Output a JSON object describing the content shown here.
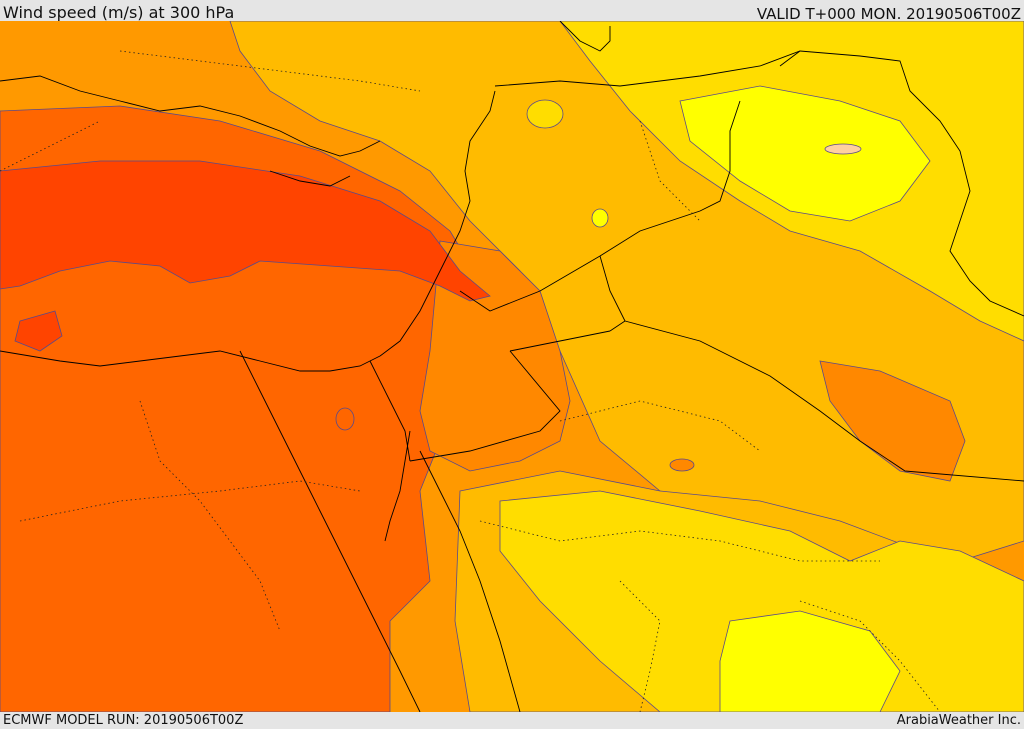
{
  "header": {
    "title": "Wind speed (m/s) at 300 hPa",
    "valid": "VALID T+000 MON. 20190506T00Z"
  },
  "footer": {
    "model_run": "ECMWF MODEL RUN: 20190506T00Z",
    "credit": "ArabiaWeather Inc."
  },
  "colors": {
    "band_1": "#ffff00",
    "band_2": "#ffdd00",
    "band_3": "#ffbb00",
    "band_4": "#ff9900",
    "band_5": "#ff8800",
    "band_6": "#ff6600",
    "band_7": "#ff4400",
    "contour_line": "#5a4a8a",
    "coastline": "#000000"
  }
}
